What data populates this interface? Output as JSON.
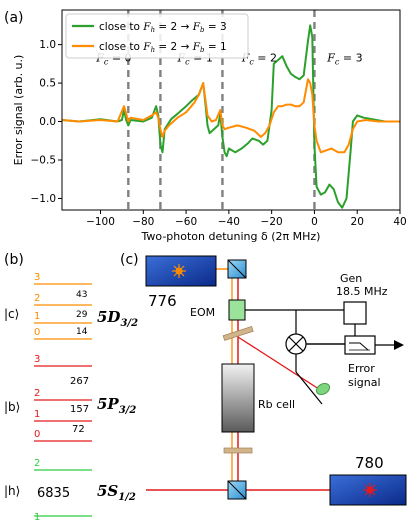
{
  "panel_a": {
    "label": "(a)",
    "chart_data": {
      "type": "line",
      "xlabel": "Two-photon detuning δ (2π MHz)",
      "ylabel": "Error signal (arb. u.)",
      "xlim": [
        -118,
        40
      ],
      "ylim": [
        -1.15,
        1.45
      ],
      "xticks": [
        -100,
        -80,
        -60,
        -40,
        -20,
        0,
        20,
        40
      ],
      "yticks": [
        -1.0,
        -0.5,
        0.0,
        0.5,
        1.0
      ],
      "xtick_labels": [
        "−100",
        "−80",
        "−60",
        "−40",
        "−20",
        "0",
        "20",
        "40"
      ],
      "ytick_labels": [
        "−1.0",
        "−0.5",
        "0.0",
        "0.5",
        "1.0"
      ],
      "legend_position": "top-left",
      "series": [
        {
          "name": "close to F_h = 2 → F_b = 3",
          "color": "#2ca02c",
          "points": [
            [
              -118,
              0.02
            ],
            [
              -110,
              0.0
            ],
            [
              -100,
              0.03
            ],
            [
              -92,
              0.0
            ],
            [
              -90,
              0.02
            ],
            [
              -89,
              0.15
            ],
            [
              -88,
              0.02
            ],
            [
              -87,
              -0.05
            ],
            [
              -86,
              0.02
            ],
            [
              -80,
              0.0
            ],
            [
              -76,
              0.05
            ],
            [
              -74,
              0.2
            ],
            [
              -73,
              0.08
            ],
            [
              -72,
              -0.3
            ],
            [
              -71,
              -0.4
            ],
            [
              -70,
              -0.1
            ],
            [
              -67,
              0.03
            ],
            [
              -64,
              0.1
            ],
            [
              -60,
              0.2
            ],
            [
              -57,
              0.28
            ],
            [
              -54,
              0.35
            ],
            [
              -52,
              0.5
            ],
            [
              -51,
              0.25
            ],
            [
              -50,
              -0.05
            ],
            [
              -49,
              -0.15
            ],
            [
              -47,
              -0.1
            ],
            [
              -45,
              -0.05
            ],
            [
              -44,
              0.1
            ],
            [
              -43,
              -0.2
            ],
            [
              -42,
              -0.4
            ],
            [
              -41,
              -0.45
            ],
            [
              -40,
              -0.35
            ],
            [
              -37,
              -0.4
            ],
            [
              -34,
              -0.35
            ],
            [
              -31,
              -0.28
            ],
            [
              -29,
              -0.22
            ],
            [
              -26,
              -0.25
            ],
            [
              -24,
              -0.3
            ],
            [
              -22,
              -0.25
            ],
            [
              -20,
              0.15
            ],
            [
              -19,
              0.75
            ],
            [
              -17,
              0.8
            ],
            [
              -15,
              0.85
            ],
            [
              -13,
              0.72
            ],
            [
              -11,
              0.62
            ],
            [
              -9,
              0.58
            ],
            [
              -7,
              0.55
            ],
            [
              -5,
              0.6
            ],
            [
              -3,
              1.05
            ],
            [
              -2,
              1.25
            ],
            [
              -1,
              1.1
            ],
            [
              0,
              -0.3
            ],
            [
              1,
              -0.85
            ],
            [
              3,
              -0.95
            ],
            [
              5,
              -0.92
            ],
            [
              7,
              -0.82
            ],
            [
              9,
              -0.88
            ],
            [
              11,
              -1.05
            ],
            [
              13,
              -1.12
            ],
            [
              15,
              -1.0
            ],
            [
              17,
              -0.35
            ],
            [
              18,
              0.0
            ],
            [
              20,
              0.08
            ],
            [
              23,
              0.05
            ],
            [
              27,
              0.03
            ],
            [
              33,
              0.0
            ],
            [
              40,
              0.0
            ]
          ]
        },
        {
          "name": "close to F_h = 2 → F_b = 1",
          "color": "#ff8c00",
          "points": [
            [
              -118,
              0.02
            ],
            [
              -110,
              0.0
            ],
            [
              -100,
              0.02
            ],
            [
              -92,
              0.0
            ],
            [
              -89,
              0.2
            ],
            [
              -88,
              0.1
            ],
            [
              -87,
              0.0
            ],
            [
              -86,
              0.05
            ],
            [
              -80,
              0.02
            ],
            [
              -76,
              0.08
            ],
            [
              -74,
              0.12
            ],
            [
              -73,
              0.05
            ],
            [
              -72,
              -0.1
            ],
            [
              -71,
              -0.2
            ],
            [
              -70,
              -0.12
            ],
            [
              -68,
              -0.05
            ],
            [
              -64,
              0.05
            ],
            [
              -60,
              0.12
            ],
            [
              -56,
              0.25
            ],
            [
              -54,
              0.35
            ],
            [
              -52,
              0.5
            ],
            [
              -51,
              0.3
            ],
            [
              -50,
              0.08
            ],
            [
              -48,
              0.0
            ],
            [
              -46,
              0.02
            ],
            [
              -44,
              0.15
            ],
            [
              -43,
              -0.05
            ],
            [
              -42,
              -0.1
            ],
            [
              -40,
              -0.08
            ],
            [
              -36,
              -0.05
            ],
            [
              -32,
              -0.08
            ],
            [
              -28,
              -0.12
            ],
            [
              -25,
              -0.2
            ],
            [
              -23,
              -0.15
            ],
            [
              -21,
              -0.05
            ],
            [
              -19,
              0.12
            ],
            [
              -17,
              0.2
            ],
            [
              -15,
              0.2
            ],
            [
              -13,
              0.22
            ],
            [
              -11,
              0.22
            ],
            [
              -9,
              0.2
            ],
            [
              -7,
              0.2
            ],
            [
              -5,
              0.25
            ],
            [
              -3,
              0.55
            ],
            [
              -2,
              0.5
            ],
            [
              -1,
              0.35
            ],
            [
              0,
              -0.05
            ],
            [
              1,
              -0.25
            ],
            [
              3,
              -0.4
            ],
            [
              5,
              -0.38
            ],
            [
              8,
              -0.35
            ],
            [
              11,
              -0.4
            ],
            [
              14,
              -0.4
            ],
            [
              16,
              -0.3
            ],
            [
              18,
              -0.1
            ],
            [
              20,
              0.0
            ],
            [
              24,
              0.02
            ],
            [
              30,
              0.0
            ],
            [
              40,
              0.0
            ]
          ]
        }
      ],
      "dashed_lines_x": [
        -87,
        -72,
        -43,
        0
      ],
      "dashed_line_color": "#808080",
      "region_labels": [
        {
          "text": "F_c = 0",
          "x": -102,
          "y": 0.78
        },
        {
          "text": "F_c = 1",
          "x": -64,
          "y": 0.78
        },
        {
          "text": "F_c = 2",
          "x": -34,
          "y": 0.78
        },
        {
          "text": "F_c = 3",
          "x": 6,
          "y": 0.78
        }
      ]
    }
  },
  "panel_b": {
    "label": "(b)",
    "levels": {
      "upper": {
        "state": "|c⟩",
        "term_main": "5D",
        "term_sub": "3/2",
        "color": "#ff8c00",
        "sublevels": [
          "3",
          "2",
          "1",
          "0"
        ],
        "spacings": [
          "43",
          "29",
          "14"
        ]
      },
      "middle": {
        "state": "|b⟩",
        "term_main": "5P",
        "term_sub": "3/2",
        "color": "#e31a1c",
        "sublevels": [
          "3",
          "2",
          "1",
          "0"
        ],
        "spacings": [
          "267",
          "157",
          "72"
        ]
      },
      "lower": {
        "state": "|h⟩",
        "term_main": "5S",
        "term_sub": "1/2",
        "color": "#2ecc40",
        "sublevels": [
          "2",
          "1"
        ],
        "spacing": "6835"
      }
    }
  },
  "panel_c": {
    "label": "(c)",
    "laser_776": "776",
    "laser_780": "780",
    "eom": "EOM",
    "generator_line1": "Gen",
    "generator_line2": "18.5 MHz",
    "rb_cell": "Rb cell",
    "error_line1": "Error",
    "error_line2": "signal"
  }
}
